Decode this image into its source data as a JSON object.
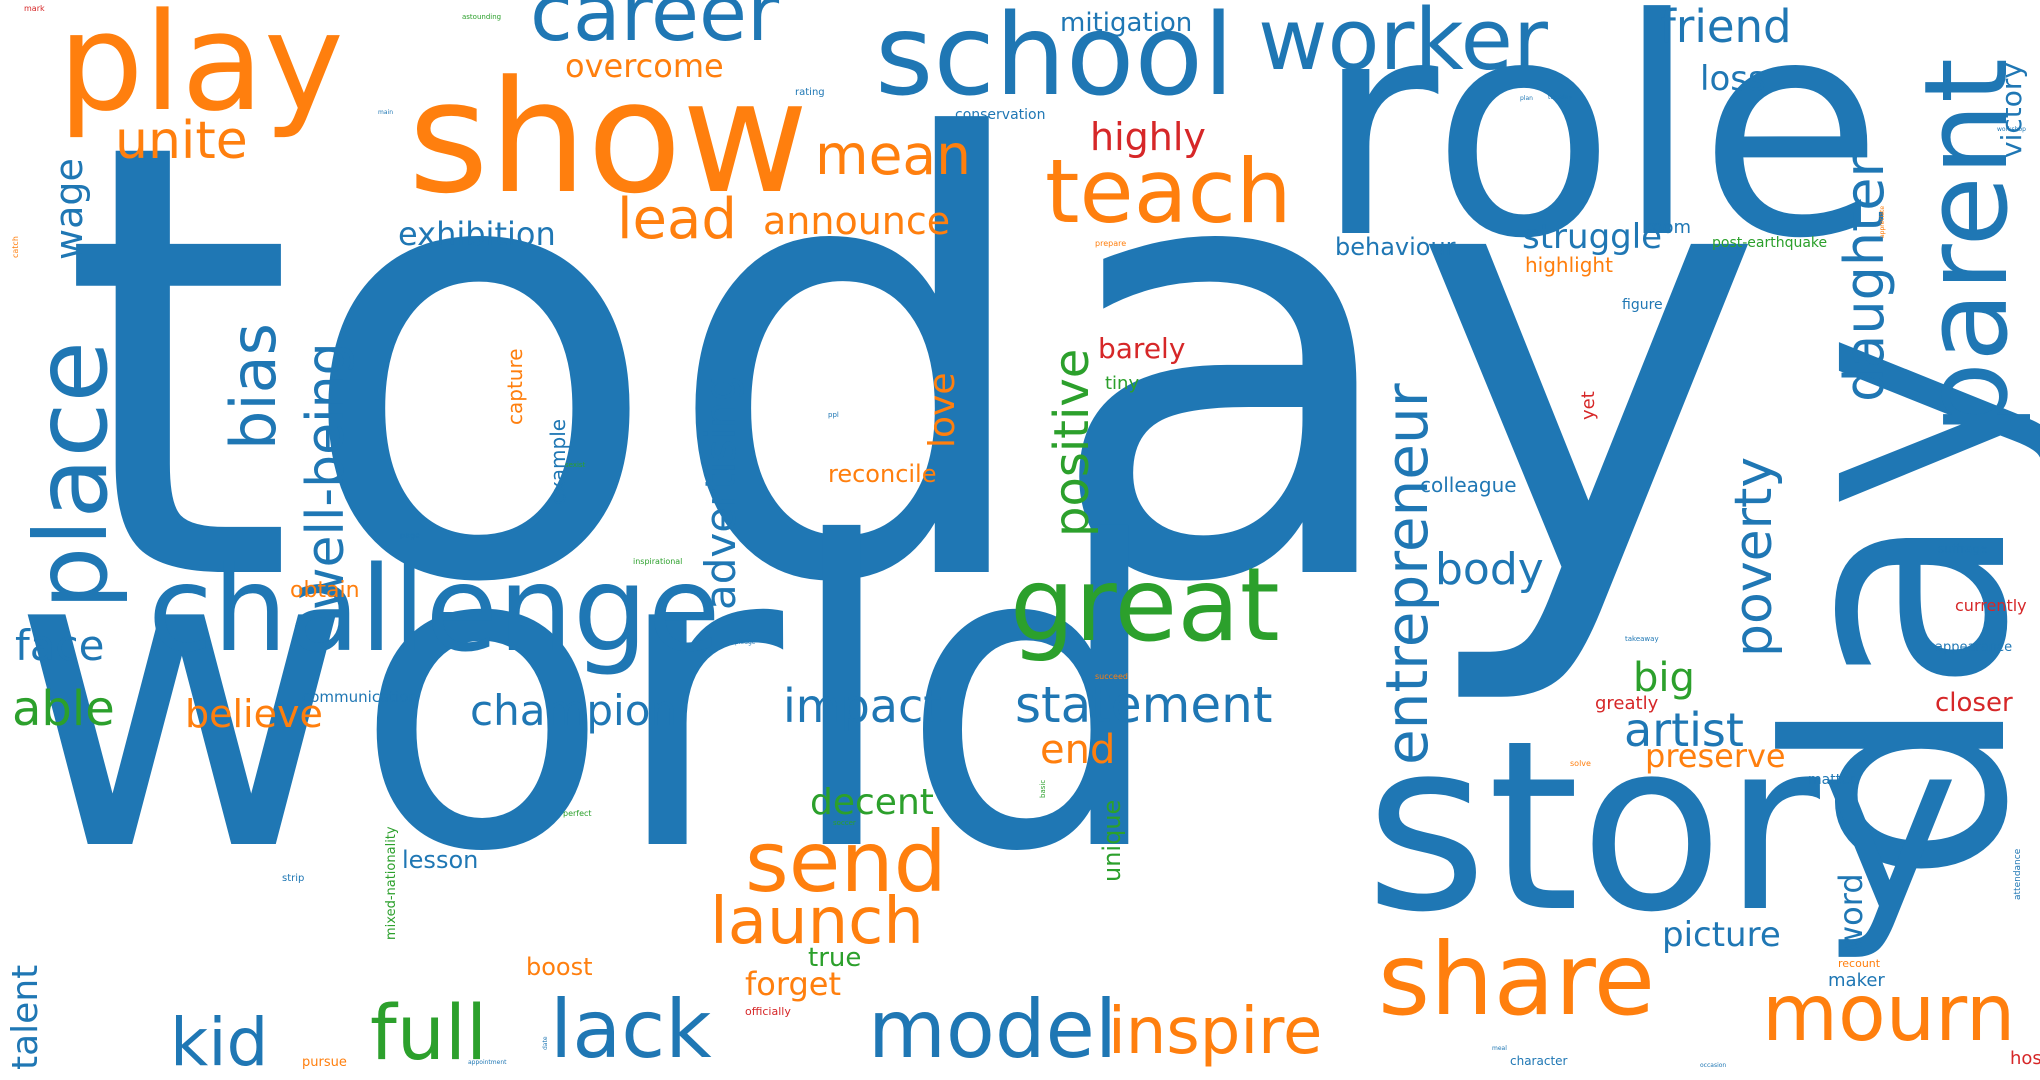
{
  "palette": {
    "blue": "#1f77b4",
    "orange": "#ff7f0e",
    "green": "#2ca02c",
    "red": "#d62728"
  },
  "words": [
    "today",
    "world",
    "role",
    "day",
    "story",
    "show",
    "play",
    "school",
    "challenge",
    "great",
    "career",
    "worker",
    "parent",
    "teach",
    "share",
    "send",
    "mourn",
    "model",
    "full",
    "lack",
    "kid",
    "inspire",
    "launch",
    "place",
    "entrepreneur",
    "well-being",
    "daughter",
    "bias",
    "advertising",
    "positive",
    "unite",
    "mean",
    "friend",
    "poverty",
    "artist",
    "statement",
    "champion",
    "impact",
    "lead",
    "announce",
    "overcome",
    "mitigation",
    "highly",
    "body",
    "face",
    "able",
    "believe",
    "exhibition",
    "struggle",
    "big",
    "picture",
    "end",
    "decent",
    "love",
    "wage",
    "talent",
    "victory",
    "loss",
    "word",
    "preserve",
    "forget",
    "reconcile",
    "barely",
    "behaviour",
    "true",
    "boost",
    "lesson",
    "unique",
    "colleague",
    "mom",
    "highlight",
    "obtain",
    "capture",
    "example",
    "closer",
    "currently",
    "maker",
    "tiny",
    "host",
    "communication",
    "greatly",
    "yet",
    "figure",
    "post-earthquake",
    "conservation",
    "mixed-nationality",
    "matter",
    "appearance",
    "suffrage",
    "recount",
    "character",
    "pursue",
    "officially",
    "attendance",
    "rating",
    "mark",
    "astounding",
    "catch",
    "prepare",
    "page",
    "strip",
    "perfect",
    "solve",
    "succeed",
    "soccer",
    "basic",
    "takeaway",
    "workshop",
    "appreciate",
    "ppl",
    "sexist",
    "inspirational",
    "appointment",
    "date",
    "meal",
    "occasion",
    "pledge",
    "tuesday",
    "plan",
    "main"
  ]
}
